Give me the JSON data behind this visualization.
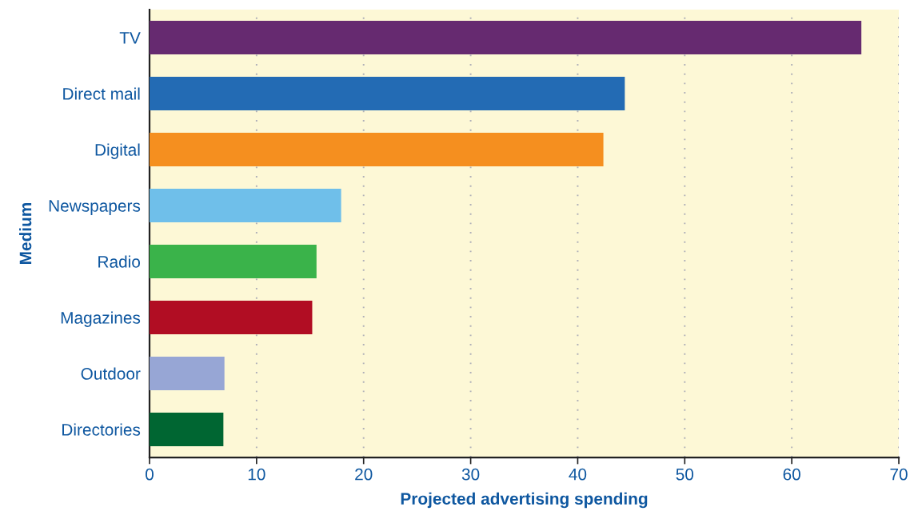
{
  "chart_data": {
    "type": "bar",
    "orientation": "horizontal",
    "xlabel": "Projected advertising spending",
    "ylabel": "Medium",
    "categories": [
      "TV",
      "Direct mail",
      "Digital",
      "Newspapers",
      "Radio",
      "Magazines",
      "Outdoor",
      "Directories"
    ],
    "values": [
      66.5,
      44.4,
      42.4,
      17.9,
      15.6,
      15.2,
      7.0,
      6.9
    ],
    "colors": [
      "#662a70",
      "#236bb4",
      "#f58f1f",
      "#6fbfea",
      "#3ab34a",
      "#b10d23",
      "#97a6d5",
      "#006632"
    ],
    "xlim": [
      0,
      70
    ],
    "xticks": [
      0,
      10,
      20,
      30,
      40,
      50,
      60,
      70
    ],
    "grid": "x",
    "legend": false
  }
}
